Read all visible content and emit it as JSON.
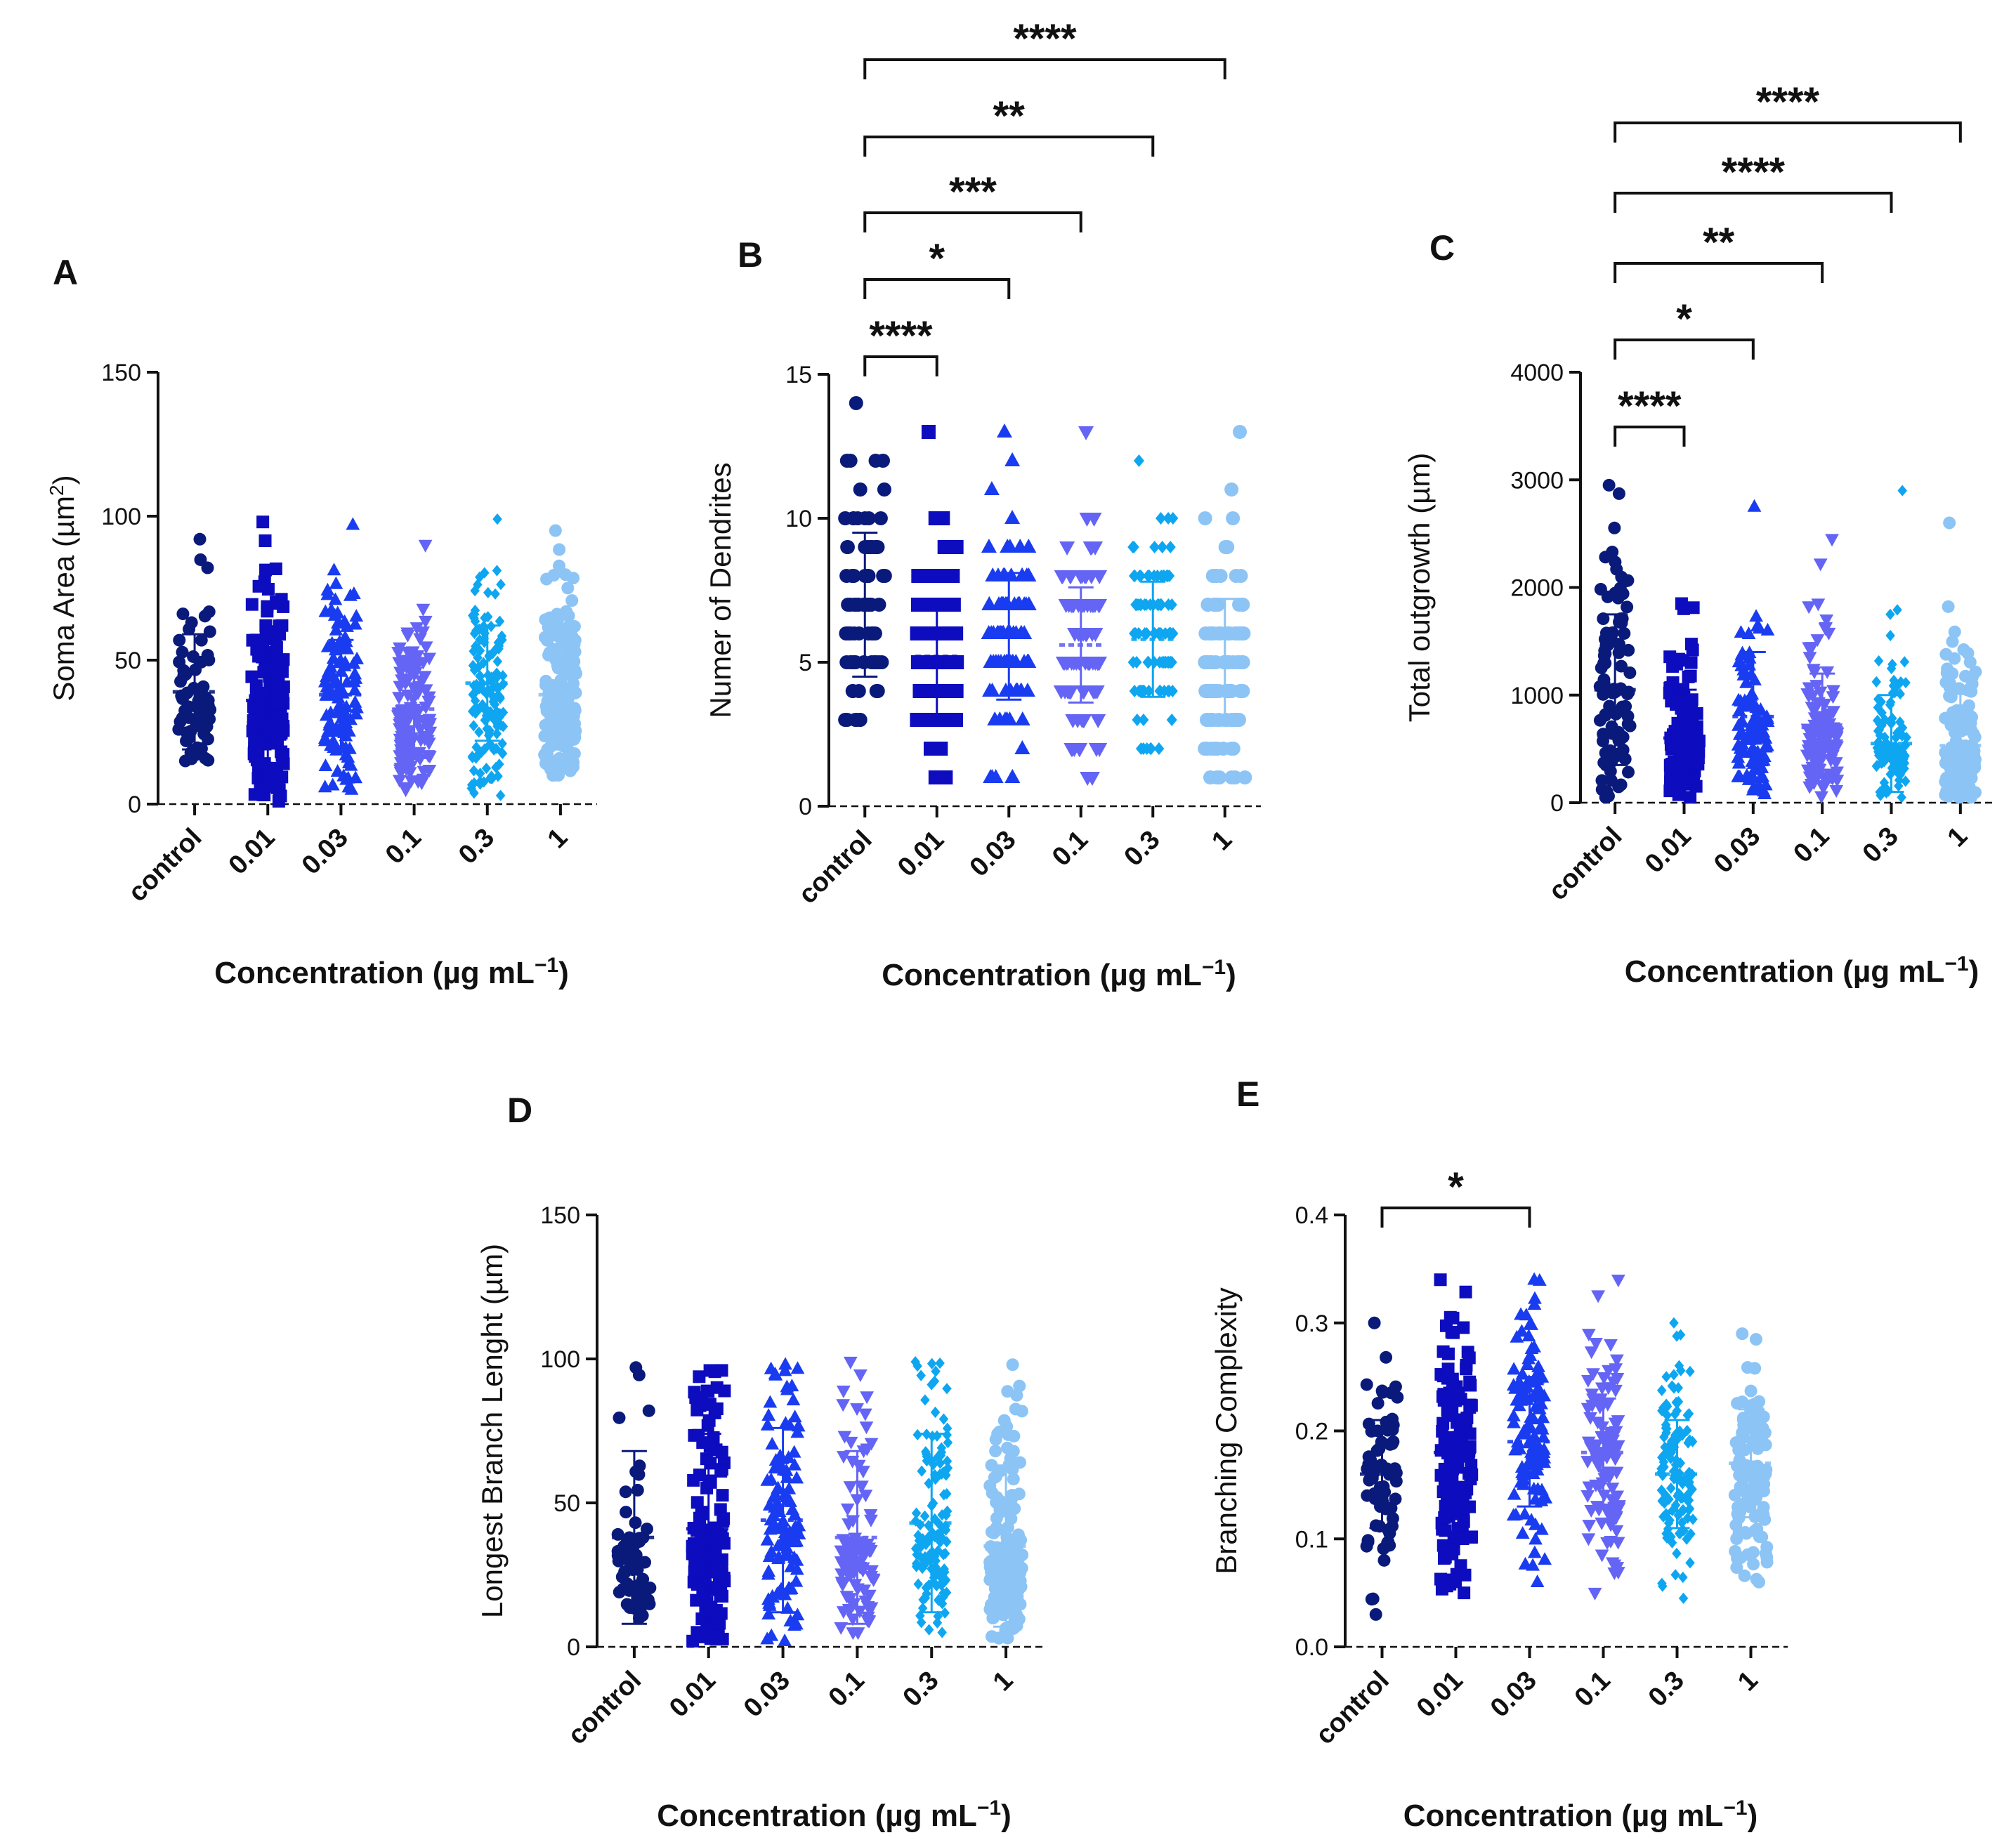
{
  "x_title": "Concentration (µg mL",
  "x_title_sup": "−1",
  "x_title_end": ")",
  "colors": [
    "#0a1a7a",
    "#0d0dbf",
    "#1a3cf0",
    "#6464f5",
    "#0ea6f0",
    "#8cc4f5"
  ],
  "chart_data": [
    {
      "id": "A",
      "type": "scatter",
      "panel_label": "A",
      "ylabel": "Soma Area (µm",
      "ylabel_sup": "2",
      "ylabel_end": ")",
      "ylim": [
        0,
        150
      ],
      "yticks": [
        "0",
        "50",
        "100",
        "150"
      ],
      "ytick_values": [
        0,
        50,
        100,
        150
      ],
      "categories": [
        "control",
        "0.01",
        "0.03",
        "0.1",
        "0.3",
        "1"
      ],
      "markers": [
        "circle",
        "square",
        "triangle",
        "triangle-down",
        "diamond",
        "circle"
      ],
      "series": [
        {
          "name": "control",
          "mean": 39,
          "sd": 20,
          "min": 15,
          "max": 92,
          "n": 70,
          "skew": 1.6
        },
        {
          "name": "0.01",
          "mean": 36,
          "sd": 22,
          "min": 1,
          "max": 98,
          "n": 150,
          "skew": 1.4
        },
        {
          "name": "0.03",
          "mean": 38,
          "sd": 19,
          "min": 5,
          "max": 97,
          "n": 110,
          "skew": 1.5
        },
        {
          "name": "0.1",
          "mean": 33,
          "sd": 17,
          "min": 5,
          "max": 90,
          "n": 130,
          "skew": 1.5
        },
        {
          "name": "0.3",
          "mean": 42,
          "sd": 20,
          "min": 3,
          "max": 99,
          "n": 150,
          "skew": 1.3
        },
        {
          "name": "1",
          "mean": 38,
          "sd": 19,
          "min": 10,
          "max": 95,
          "n": 180,
          "skew": 1.5
        }
      ],
      "comparisons": []
    },
    {
      "id": "B",
      "type": "scatter",
      "panel_label": "B",
      "ylabel": "Numer of Dendrites",
      "ylabel_sup": "",
      "ylabel_end": "",
      "ylim": [
        0,
        15
      ],
      "yticks": [
        "0",
        "5",
        "10",
        "15"
      ],
      "ytick_values": [
        0,
        5,
        10,
        15
      ],
      "categories": [
        "control",
        "0.01",
        "0.03",
        "0.1",
        "0.3",
        "1"
      ],
      "markers": [
        "circle",
        "square",
        "triangle",
        "triangle-down",
        "diamond",
        "circle"
      ],
      "discrete": true,
      "series": [
        {
          "name": "control",
          "mean": 7.0,
          "sd": 2.5,
          "min": 3,
          "max": 14,
          "n": 90,
          "skew": 1.0
        },
        {
          "name": "0.01",
          "mean": 5.2,
          "sd": 2.0,
          "min": 1,
          "max": 13,
          "n": 110,
          "skew": 1.0
        },
        {
          "name": "0.03",
          "mean": 5.9,
          "sd": 2.2,
          "min": 1,
          "max": 13,
          "n": 100,
          "skew": 1.0
        },
        {
          "name": "0.1",
          "mean": 5.6,
          "sd": 2.0,
          "min": 1,
          "max": 13,
          "n": 100,
          "skew": 1.0
        },
        {
          "name": "0.3",
          "mean": 5.8,
          "sd": 2.0,
          "min": 2,
          "max": 12,
          "n": 100,
          "skew": 1.0
        },
        {
          "name": "1",
          "mean": 5.0,
          "sd": 2.2,
          "min": 1,
          "max": 13,
          "n": 120,
          "skew": 1.0
        }
      ],
      "comparisons": [
        {
          "from": 0,
          "to": 1,
          "label": "****"
        },
        {
          "from": 0,
          "to": 2,
          "label": "*"
        },
        {
          "from": 0,
          "to": 3,
          "label": "***"
        },
        {
          "from": 0,
          "to": 4,
          "label": "**"
        },
        {
          "from": 0,
          "to": 5,
          "label": "****"
        }
      ]
    },
    {
      "id": "C",
      "type": "scatter",
      "panel_label": "C",
      "ylabel": "Total outgrowth (µm)",
      "ylabel_sup": "",
      "ylabel_end": "",
      "ylim": [
        0,
        4000
      ],
      "yticks": [
        "0",
        "1000",
        "2000",
        "3000",
        "4000"
      ],
      "ytick_values": [
        0,
        1000,
        2000,
        3000,
        4000
      ],
      "categories": [
        "control",
        "0.01",
        "0.03",
        "0.1",
        "0.3",
        "1"
      ],
      "markers": [
        "circle",
        "square",
        "triangle",
        "triangle-down",
        "diamond",
        "circle"
      ],
      "series": [
        {
          "name": "control",
          "mean": 1050,
          "sd": 700,
          "min": 50,
          "max": 2950,
          "n": 100,
          "skew": 1.6
        },
        {
          "name": "0.01",
          "mean": 600,
          "sd": 450,
          "min": 50,
          "max": 1850,
          "n": 110,
          "skew": 2.0
        },
        {
          "name": "0.03",
          "mean": 800,
          "sd": 600,
          "min": 80,
          "max": 2750,
          "n": 110,
          "skew": 2.0
        },
        {
          "name": "0.1",
          "mean": 700,
          "sd": 500,
          "min": 60,
          "max": 2450,
          "n": 110,
          "skew": 2.0
        },
        {
          "name": "0.3",
          "mean": 550,
          "sd": 450,
          "min": 50,
          "max": 2900,
          "n": 130,
          "skew": 2.4
        },
        {
          "name": "1",
          "mean": 530,
          "sd": 480,
          "min": 50,
          "max": 2600,
          "n": 150,
          "skew": 2.4
        }
      ],
      "comparisons": [
        {
          "from": 0,
          "to": 1,
          "label": "****"
        },
        {
          "from": 0,
          "to": 2,
          "label": "*"
        },
        {
          "from": 0,
          "to": 3,
          "label": "**"
        },
        {
          "from": 0,
          "to": 4,
          "label": "****"
        },
        {
          "from": 0,
          "to": 5,
          "label": "****"
        }
      ]
    },
    {
      "id": "D",
      "type": "scatter",
      "panel_label": "D",
      "ylabel": "Longest Branch Lenght (µm)",
      "ylabel_sup": "",
      "ylabel_end": "",
      "ylim": [
        0,
        150
      ],
      "yticks": [
        "0",
        "50",
        "100",
        "150"
      ],
      "ytick_values": [
        0,
        50,
        100,
        150
      ],
      "categories": [
        "control",
        "0.01",
        "0.03",
        "0.1",
        "0.3",
        "1"
      ],
      "markers": [
        "circle",
        "square",
        "triangle",
        "triangle-down",
        "diamond",
        "circle"
      ],
      "series": [
        {
          "name": "control",
          "mean": 38,
          "sd": 30,
          "min": 10,
          "max": 97,
          "n": 60,
          "skew": 2.5
        },
        {
          "name": "0.01",
          "mean": 41,
          "sd": 33,
          "min": 2,
          "max": 96,
          "n": 140,
          "skew": 2.0
        },
        {
          "name": "0.03",
          "mean": 44,
          "sd": 32,
          "min": 2,
          "max": 98,
          "n": 110,
          "skew": 1.8
        },
        {
          "name": "0.1",
          "mean": 38,
          "sd": 30,
          "min": 5,
          "max": 99,
          "n": 100,
          "skew": 2.4
        },
        {
          "name": "0.3",
          "mean": 43,
          "sd": 31,
          "min": 5,
          "max": 99,
          "n": 130,
          "skew": 2.0
        },
        {
          "name": "1",
          "mean": 35,
          "sd": 28,
          "min": 3,
          "max": 98,
          "n": 170,
          "skew": 2.2
        }
      ],
      "comparisons": []
    },
    {
      "id": "E",
      "type": "scatter",
      "panel_label": "E",
      "ylabel": "Branching Complexity",
      "ylabel_sup": "",
      "ylabel_end": "",
      "ylim": [
        0,
        0.4
      ],
      "yticks": [
        "0.0",
        "0.1",
        "0.2",
        "0.3",
        "0.4"
      ],
      "ytick_values": [
        0,
        0.1,
        0.2,
        0.3,
        0.4
      ],
      "categories": [
        "control",
        "0.01",
        "0.03",
        "0.1",
        "0.3",
        "1"
      ],
      "markers": [
        "circle",
        "square",
        "triangle",
        "triangle-down",
        "diamond",
        "circle"
      ],
      "series": [
        {
          "name": "control",
          "mean": 0.16,
          "sd": 0.05,
          "min": 0.03,
          "max": 0.3,
          "n": 70,
          "skew": 1.1
        },
        {
          "name": "0.01",
          "mean": 0.18,
          "sd": 0.06,
          "min": 0.05,
          "max": 0.34,
          "n": 140,
          "skew": 1.0
        },
        {
          "name": "0.03",
          "mean": 0.19,
          "sd": 0.06,
          "min": 0.06,
          "max": 0.34,
          "n": 110,
          "skew": 1.0
        },
        {
          "name": "0.1",
          "mean": 0.18,
          "sd": 0.05,
          "min": 0.05,
          "max": 0.34,
          "n": 100,
          "skew": 1.0
        },
        {
          "name": "0.3",
          "mean": 0.16,
          "sd": 0.05,
          "min": 0.045,
          "max": 0.3,
          "n": 130,
          "skew": 1.0
        },
        {
          "name": "1",
          "mean": 0.17,
          "sd": 0.05,
          "min": 0.06,
          "max": 0.29,
          "n": 120,
          "skew": 1.2
        }
      ],
      "comparisons": [
        {
          "from": 0,
          "to": 2,
          "label": "*"
        }
      ]
    }
  ]
}
